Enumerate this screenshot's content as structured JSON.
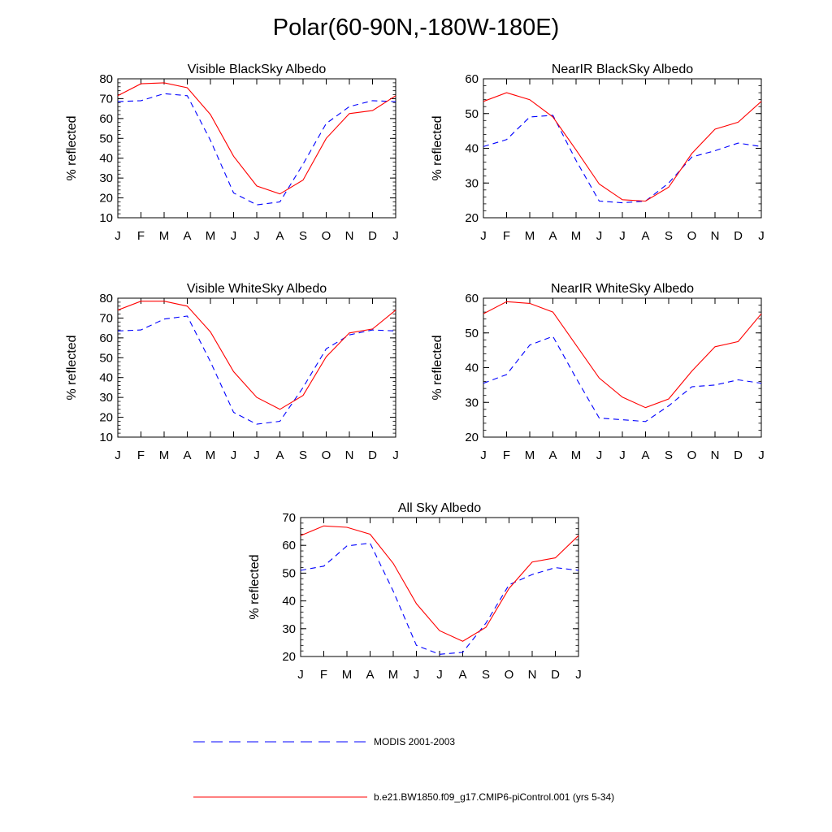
{
  "title": "Polar(60-90N,-180W-180E)",
  "chart_data": [
    {
      "type": "line",
      "title": "Visible BlackSky Albedo",
      "ylabel": "% reflected",
      "categories": [
        "J",
        "F",
        "M",
        "A",
        "M",
        "J",
        "J",
        "A",
        "S",
        "O",
        "N",
        "D",
        "J"
      ],
      "ylim": [
        10,
        80
      ],
      "yticks": [
        10,
        20,
        30,
        40,
        50,
        60,
        70,
        80
      ],
      "series": [
        {
          "name": "MODIS 2001-2003",
          "color": "#0000ff",
          "dash": "dashed",
          "values": [
            68.5,
            69,
            72.5,
            71.5,
            49,
            22.5,
            16.5,
            18,
            37,
            57.5,
            66,
            69,
            68.5
          ]
        },
        {
          "name": "b.e21.BW1850.f09_g17.CMIP6-piControl.001 (yrs 5-34)",
          "color": "#ff0000",
          "dash": "solid",
          "values": [
            71.5,
            77.5,
            78,
            75.5,
            62,
            41,
            26,
            22,
            29,
            50,
            62.5,
            64,
            71.5
          ]
        }
      ]
    },
    {
      "type": "line",
      "title": "NearIR BlackSky Albedo",
      "ylabel": "% reflected",
      "categories": [
        "J",
        "F",
        "M",
        "A",
        "M",
        "J",
        "J",
        "A",
        "S",
        "O",
        "N",
        "D",
        "J"
      ],
      "ylim": [
        20,
        60
      ],
      "yticks": [
        20,
        30,
        40,
        50,
        60
      ],
      "series": [
        {
          "name": "MODIS 2001-2003",
          "color": "#0000ff",
          "dash": "dashed",
          "values": [
            40.5,
            42.5,
            49,
            49.5,
            36.5,
            24.8,
            24.3,
            24.8,
            30,
            37.5,
            39.3,
            41.5,
            40.5
          ]
        },
        {
          "name": "b.e21.BW1850.f09_g17.CMIP6-piControl.001 (yrs 5-34)",
          "color": "#ff0000",
          "dash": "solid",
          "values": [
            53.5,
            56,
            54,
            49,
            39.5,
            29.7,
            25.2,
            24.8,
            28.8,
            38.5,
            45.5,
            47.5,
            53.5
          ]
        }
      ]
    },
    {
      "type": "line",
      "title": "Visible WhiteSky Albedo",
      "ylabel": "% reflected",
      "categories": [
        "J",
        "F",
        "M",
        "A",
        "M",
        "J",
        "J",
        "A",
        "S",
        "O",
        "N",
        "D",
        "J"
      ],
      "ylim": [
        10,
        80
      ],
      "yticks": [
        10,
        20,
        30,
        40,
        50,
        60,
        70,
        80
      ],
      "series": [
        {
          "name": "MODIS 2001-2003",
          "color": "#0000ff",
          "dash": "dashed",
          "values": [
            63.5,
            64,
            69.5,
            71,
            48,
            22.5,
            16.5,
            18,
            35,
            54.5,
            61.5,
            64,
            63.5
          ]
        },
        {
          "name": "b.e21.BW1850.f09_g17.CMIP6-piControl.001 (yrs 5-34)",
          "color": "#ff0000",
          "dash": "solid",
          "values": [
            74,
            78.5,
            78.5,
            76,
            63,
            43,
            30,
            24,
            31,
            50.5,
            62.5,
            64.5,
            74
          ]
        }
      ]
    },
    {
      "type": "line",
      "title": "NearIR WhiteSky Albedo",
      "ylabel": "% reflected",
      "categories": [
        "J",
        "F",
        "M",
        "A",
        "M",
        "J",
        "J",
        "A",
        "S",
        "O",
        "N",
        "D",
        "J"
      ],
      "ylim": [
        20,
        60
      ],
      "yticks": [
        20,
        30,
        40,
        50,
        60
      ],
      "series": [
        {
          "name": "MODIS 2001-2003",
          "color": "#0000ff",
          "dash": "dashed",
          "values": [
            35.5,
            38,
            46.5,
            49,
            37,
            25.5,
            25,
            24.5,
            29,
            34.5,
            35,
            36.5,
            35.5
          ]
        },
        {
          "name": "b.e21.BW1850.f09_g17.CMIP6-piControl.001 (yrs 5-34)",
          "color": "#ff0000",
          "dash": "solid",
          "values": [
            55.5,
            59,
            58.5,
            56,
            46.5,
            37,
            31.5,
            28.5,
            31,
            39,
            46,
            47.5,
            55.5
          ]
        }
      ]
    },
    {
      "type": "line",
      "title": "All Sky Albedo",
      "ylabel": "% reflected",
      "categories": [
        "J",
        "F",
        "M",
        "A",
        "M",
        "J",
        "J",
        "A",
        "S",
        "O",
        "N",
        "D",
        "J"
      ],
      "ylim": [
        20,
        70
      ],
      "yticks": [
        20,
        30,
        40,
        50,
        60,
        70
      ],
      "series": [
        {
          "name": "MODIS 2001-2003",
          "color": "#0000ff",
          "dash": "dashed",
          "values": [
            51,
            52.5,
            59.8,
            60.8,
            43.5,
            24,
            20.8,
            21.5,
            32,
            45.8,
            49.5,
            52,
            51
          ]
        },
        {
          "name": "b.e21.BW1850.f09_g17.CMIP6-piControl.001 (yrs 5-34)",
          "color": "#ff0000",
          "dash": "solid",
          "values": [
            63.5,
            67,
            66.5,
            64,
            53.5,
            39,
            29.3,
            25.5,
            30.5,
            44.5,
            54,
            55.5,
            63.5
          ]
        }
      ]
    }
  ],
  "legend": [
    {
      "label": "MODIS 2001-2003",
      "color": "#0000ff",
      "dash": "dashed"
    },
    {
      "label": "b.e21.BW1850.f09_g17.CMIP6-piControl.001 (yrs 5-34)",
      "color": "#ff0000",
      "dash": "solid"
    }
  ]
}
